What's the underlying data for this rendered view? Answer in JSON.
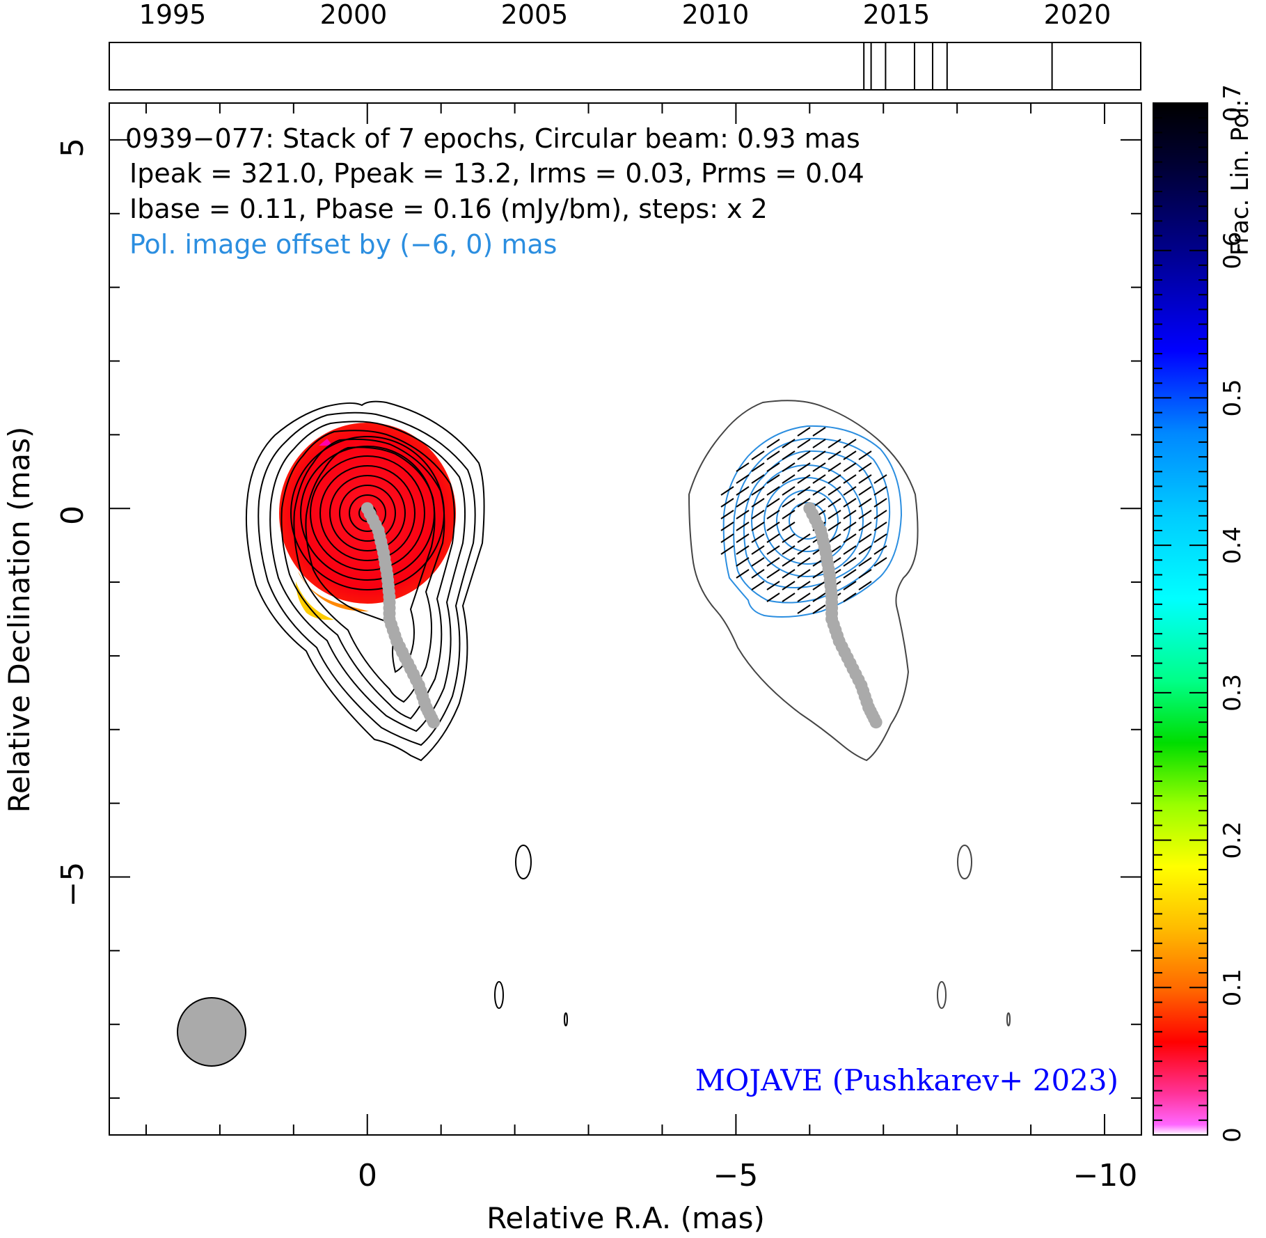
{
  "chart_data": {
    "type": "contour",
    "timeline": {
      "tick_labels": [
        "1995",
        "2000",
        "2005",
        "2010",
        "2015",
        "2020"
      ],
      "epochs": [
        2014.1,
        2014.3,
        2014.7,
        2015.5,
        2016.0,
        2016.4,
        2019.3
      ]
    },
    "annotations": {
      "line1": "0939−077: Stack of 7 epochs, Circular beam: 0.93 mas",
      "line2": "Ipeak = 321.0, Ppeak = 13.2, Irms = 0.03, Prms = 0.04",
      "line3": "Ibase = 0.11, Pbase = 0.16 (mJy/bm), steps: x 2",
      "line4": "Pol. image offset by (−6, 0) mas",
      "credit": "MOJAVE (Pushkarev+ 2023)"
    },
    "xlabel": "Relative R.A. (mas)",
    "ylabel": "Relative Declination (mas)",
    "x_tick_labels": [
      "0",
      "−5",
      "−10"
    ],
    "y_tick_labels": [
      "5",
      "0",
      "−5"
    ],
    "xlim": [
      3.5,
      -10.5
    ],
    "ylim": [
      -8.5,
      5.5
    ],
    "colorbar": {
      "label": "Frac. Lin. Pol.",
      "tick_labels": [
        "0",
        "0.1",
        "0.2",
        "0.3",
        "0.4",
        "0.5",
        "0.6",
        "0.7"
      ],
      "range": [
        0,
        0.7
      ]
    },
    "beam_diameter_mas": 0.93,
    "pol_offset_mas": [
      -6,
      0
    ],
    "ridge_line": [
      [
        0,
        0
      ],
      [
        0.15,
        -0.3
      ],
      [
        0.22,
        -0.6
      ],
      [
        0.27,
        -0.9
      ],
      [
        0.3,
        -1.2
      ],
      [
        0.3,
        -1.5
      ],
      [
        0.4,
        -1.8
      ],
      [
        0.55,
        -2.1
      ],
      [
        0.7,
        -2.4
      ],
      [
        0.8,
        -2.7
      ],
      [
        0.9,
        -2.9
      ]
    ],
    "colors": {
      "stokes_i_contours": "#000000",
      "pol_contours": "#2b8ee0",
      "pol_outline": "#444444",
      "ridge": "#aaaaaa",
      "beam": "#aaaaaa",
      "fracpol_core": "#ff0000",
      "pol_label": "#2b8ee0",
      "credit": "#0000ff"
    }
  }
}
